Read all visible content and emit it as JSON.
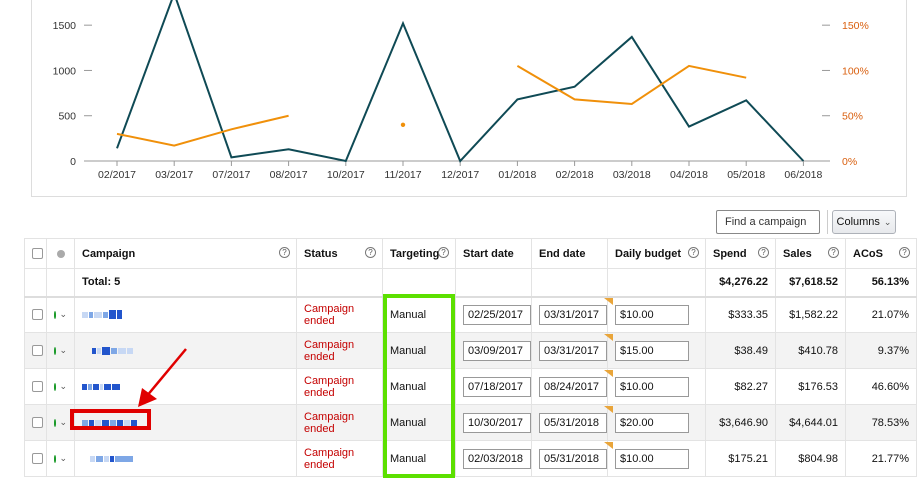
{
  "chart_data": {
    "type": "line",
    "categories": [
      "02/2017",
      "03/2017",
      "07/2017",
      "08/2017",
      "10/2017",
      "11/2017",
      "12/2017",
      "01/2018",
      "02/2018",
      "03/2018",
      "04/2018",
      "05/2018",
      "06/2018"
    ],
    "left_axis": {
      "ticks": [
        "0",
        "500",
        "1000",
        "1500"
      ],
      "ylim": [
        0,
        1800
      ]
    },
    "right_axis": {
      "ticks": [
        "0%",
        "50%",
        "100%",
        "150%"
      ],
      "ylim": [
        0,
        180
      ]
    },
    "series": [
      {
        "values": [
          140,
          1850,
          40,
          130,
          0,
          1520,
          0,
          680,
          820,
          1370,
          380,
          670,
          0
        ],
        "color": "#0f4a55",
        "axis": "left"
      },
      {
        "values": [
          30,
          17,
          35,
          50,
          null,
          40,
          null,
          105,
          68,
          63,
          105,
          92,
          null
        ],
        "color": "#f0900a",
        "axis": "right"
      }
    ],
    "left_axis_color": "#333333",
    "right_axis_color": "#d95f0e",
    "grid": false
  },
  "toolbar": {
    "search_placeholder": "Find a campaign",
    "columns_label": "Columns",
    "columns_icon": "chevron-down-icon"
  },
  "table": {
    "headers": {
      "campaign": "Campaign",
      "status": "Status",
      "targeting": "Targeting",
      "start_date": "Start date",
      "end_date": "End date",
      "daily_budget": "Daily budget",
      "spend": "Spend",
      "sales": "Sales",
      "acos": "ACoS"
    },
    "total": {
      "label": "Total: 5",
      "spend": "$4,276.22",
      "sales": "$7,618.52",
      "acos": "56.13%"
    },
    "rows": [
      {
        "status": "Campaign ended",
        "targeting": "Manual",
        "start_date": "02/25/2017",
        "end_date": "03/31/2017",
        "budget": "$10.00",
        "spend": "$333.35",
        "sales": "$1,582.22",
        "acos": "21.07%"
      },
      {
        "status": "Campaign ended",
        "targeting": "Manual",
        "start_date": "03/09/2017",
        "end_date": "03/31/2017",
        "budget": "$15.00",
        "spend": "$38.49",
        "sales": "$410.78",
        "acos": "9.37%"
      },
      {
        "status": "Campaign ended",
        "targeting": "Manual",
        "start_date": "07/18/2017",
        "end_date": "08/24/2017",
        "budget": "$10.00",
        "spend": "$82.27",
        "sales": "$176.53",
        "acos": "46.60%"
      },
      {
        "status": "Campaign ended",
        "targeting": "Manual",
        "start_date": "10/30/2017",
        "end_date": "05/31/2018",
        "budget": "$20.00",
        "spend": "$3,646.90",
        "sales": "$4,644.01",
        "acos": "78.53%"
      },
      {
        "status": "Campaign ended",
        "targeting": "Manual",
        "start_date": "02/03/2018",
        "end_date": "05/31/2018",
        "budget": "$10.00",
        "spend": "$175.21",
        "sales": "$804.98",
        "acos": "21.77%"
      }
    ]
  },
  "colors": {
    "status_ended": "#c40000",
    "status_dot": "#1a9a29",
    "annotation_green": "#5ce000",
    "annotation_red": "#e00000"
  }
}
